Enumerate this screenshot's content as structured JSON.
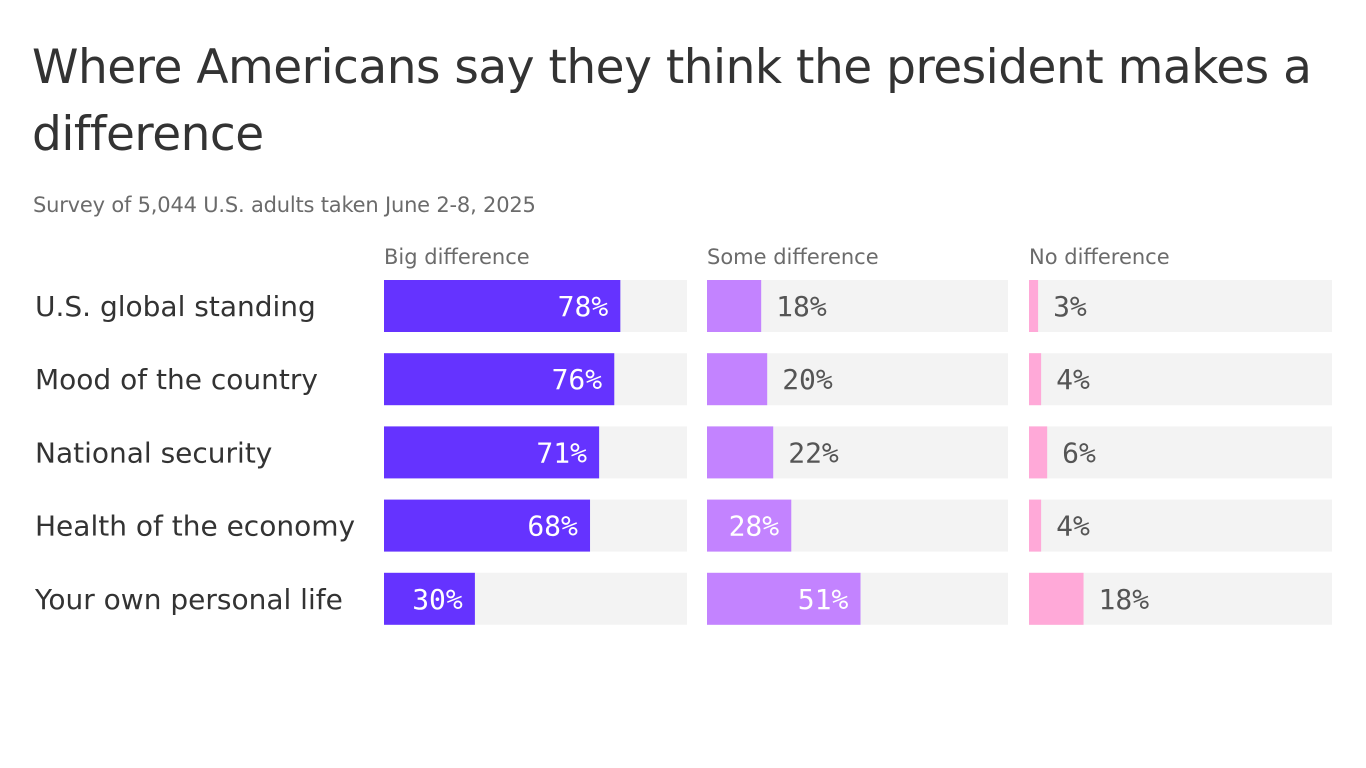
{
  "title": "Where Americans say they think the president makes a difference",
  "subtitle": "Survey of 5,044 U.S. adults taken June 2-8, 2025",
  "chart_data": {
    "type": "bar",
    "title": "Where Americans say they think the president makes a difference",
    "subtitle": "Survey of 5,044 U.S. adults taken June 2-8, 2025",
    "xlabel": "",
    "ylabel": "",
    "xlim": [
      0,
      100
    ],
    "grid": false,
    "legend": "none",
    "categories": [
      "U.S. global standing",
      "Mood of the country",
      "National security",
      "Health of the economy",
      "Your own personal life"
    ],
    "series": [
      {
        "name": "Big difference",
        "color": "#6533ff",
        "values": [
          78,
          76,
          71,
          68,
          30
        ],
        "labels": [
          "78%",
          "76%",
          "71%",
          "68%",
          "30%"
        ]
      },
      {
        "name": "Some difference",
        "color": "#c383ff",
        "values": [
          18,
          20,
          22,
          28,
          51
        ],
        "labels": [
          "18%",
          "20%",
          "22%",
          "28%",
          "51%"
        ]
      },
      {
        "name": "No difference",
        "color": "#ffa9d8",
        "values": [
          3,
          4,
          6,
          4,
          18
        ],
        "labels": [
          "3%",
          "4%",
          "6%",
          "4%",
          "18%"
        ]
      }
    ],
    "track_color": "#f3f3f3"
  }
}
